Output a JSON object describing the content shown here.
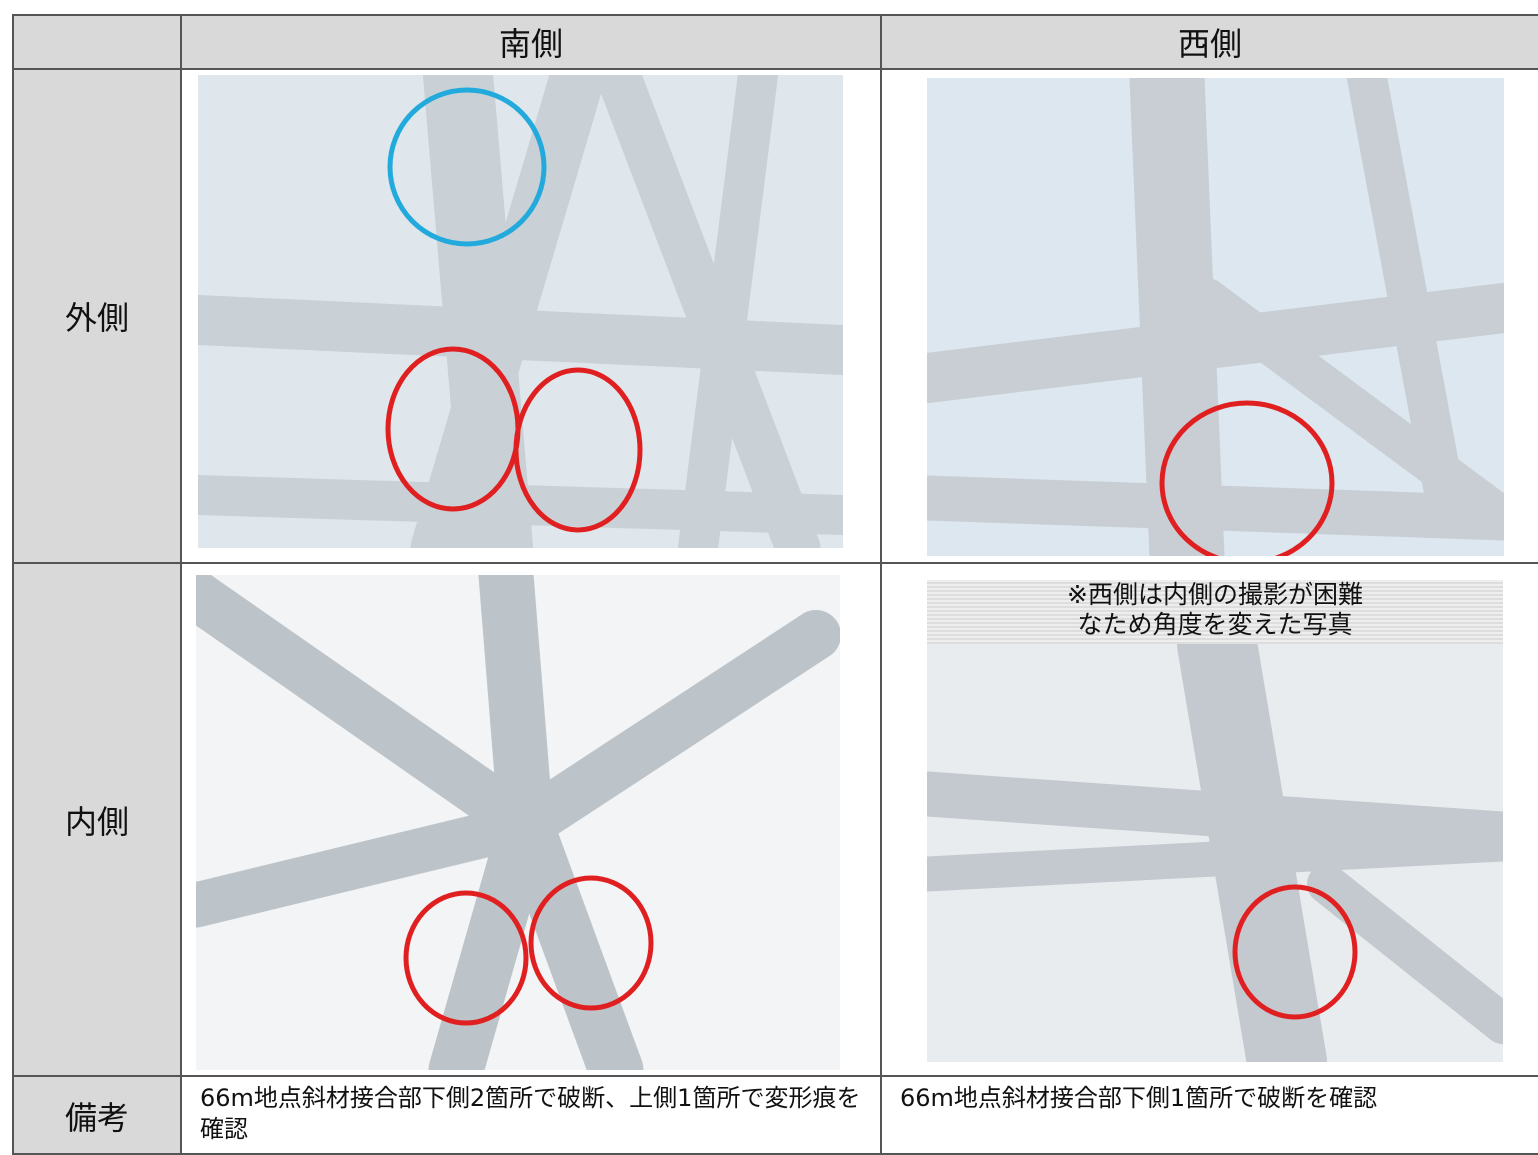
{
  "table": {
    "header": [
      "南側",
      "西側"
    ],
    "rows": [
      {
        "label": "外側"
      },
      {
        "label": "内側"
      },
      {
        "label": "備考",
        "notes": [
          "66m地点斜材接合部下側2箇所で破断、上側1箇所で変形痕を確認",
          "66m地点斜材接合部下側1箇所で破断を確認"
        ]
      }
    ],
    "photo_caption": [
      "※西側は内側の撮影が困難",
      "なため角度を変えた写真"
    ]
  }
}
